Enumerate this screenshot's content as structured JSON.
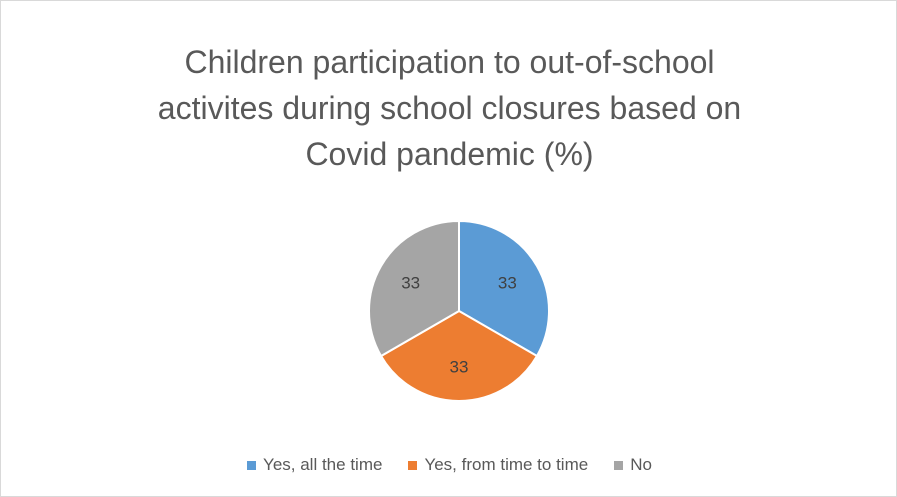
{
  "chart_data": {
    "type": "pie",
    "title_lines": [
      "Children participation to out-of-school",
      "activites during school  closures based on",
      "Covid pandemic (%)"
    ],
    "categories": [
      "Yes, all the time",
      "Yes, from time to time",
      "No"
    ],
    "values": [
      33,
      33,
      33
    ],
    "data_labels": [
      "33",
      "33",
      "33"
    ],
    "colors": [
      "#5B9BD5",
      "#ED7D31",
      "#A5A5A5"
    ],
    "legend_position": "bottom",
    "start_angle_deg": 0,
    "direction": "clockwise"
  }
}
